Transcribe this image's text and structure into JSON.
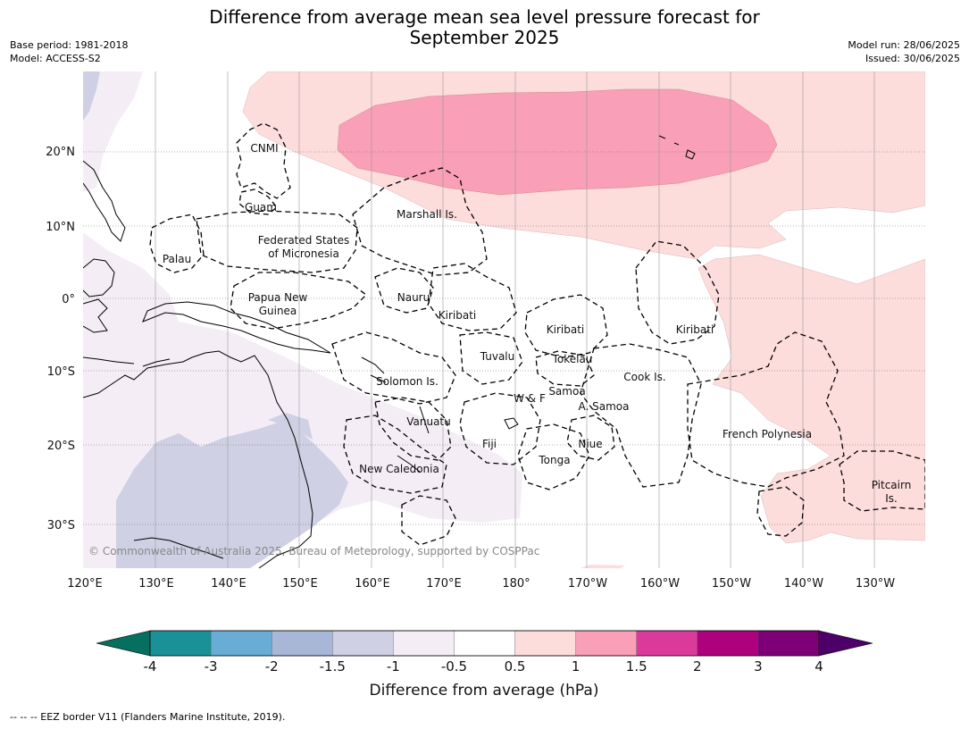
{
  "header": {
    "title_line1": "Difference from average mean sea level pressure forecast for",
    "title_line2": "September 2025",
    "base_period": "Base period: 1981-2018",
    "model": "Model: ACCESS-S2",
    "model_run": "Model run: 28/06/2025",
    "issued": "Issued: 30/06/2025"
  },
  "map": {
    "lon_labels": [
      "120°E",
      "130°E",
      "140°E",
      "150°E",
      "160°E",
      "170°E",
      "180°",
      "170°W",
      "160°W",
      "150°W",
      "140°W",
      "130°W"
    ],
    "lat_labels": [
      "20°N",
      "10°N",
      "0°",
      "10°S",
      "20°S",
      "30°S"
    ],
    "regions": {
      "cnmi": "CNMI",
      "guam": "Guam",
      "marshall": "Marshall Is.",
      "fsm_1": "Federated States",
      "fsm_2": "of Micronesia",
      "palau": "Palau",
      "png_1": "Papua New",
      "png_2": "Guinea",
      "nauru": "Nauru",
      "kiribati_w": "Kiribati",
      "kiribati_c": "Kiribati",
      "kiribati_e": "Kiribati",
      "tuvalu": "Tuvalu",
      "tokelau": "Tokelau",
      "solomon": "Solomon Is.",
      "samoa": "Samoa",
      "wf": "W & F",
      "asamoa": "A. Samoa",
      "cook": "Cook Is.",
      "vanuatu": "Vanuatu",
      "fiji": "Fiji",
      "niue": "Niue",
      "tonga": "Tonga",
      "newcal": "New Caledonia",
      "frpoly": "French Polynesia",
      "pitcairn_1": "Pitcairn",
      "pitcairn_2": "Is."
    },
    "copyright": "© Commonwealth of Australia 2025, Bureau of Meteorology, supported by COSPPac"
  },
  "colorbar": {
    "title": "Difference from average (hPa)",
    "ticks": [
      "-4",
      "-3",
      "-2",
      "-1.5",
      "-1",
      "-0.5",
      "0.5",
      "1",
      "1.5",
      "2",
      "3",
      "4"
    ],
    "colors": [
      "#1a9197",
      "#69acd6",
      "#a8b7d8",
      "#d0d0e5",
      "#f4edf5",
      "#ffffff",
      "#fddcdc",
      "#f99fb7",
      "#dc3a9a",
      "#ad017e",
      "#7d0079"
    ],
    "under_color": "#066f5f",
    "over_color": "#4c0068"
  },
  "footer": {
    "legend_text": "--  --  -- EEZ border V11 (Flanders Marine Institute, 2019)."
  }
}
